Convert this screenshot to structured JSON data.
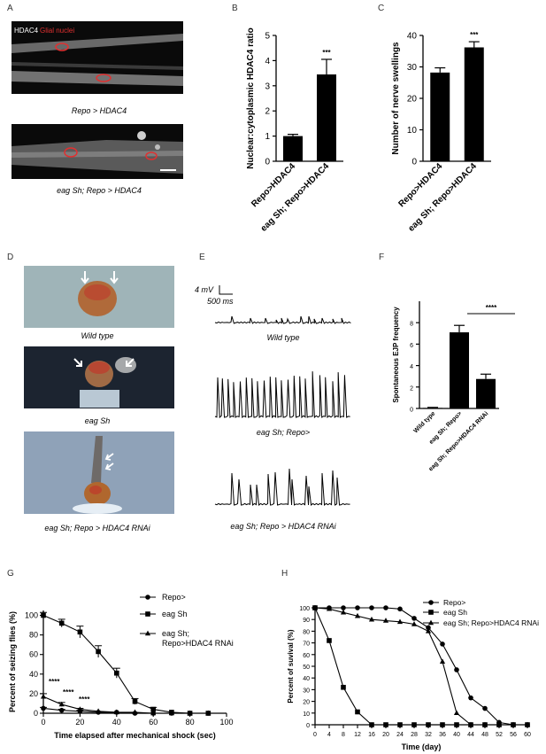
{
  "panel_letters": {
    "A": "A",
    "B": "B",
    "C": "C",
    "D": "D",
    "E": "E",
    "F": "F",
    "G": "G",
    "H": "H"
  },
  "panel_a": {
    "legend_hdac4": "HDAC4",
    "legend_glial": "Glial nuclei",
    "caption_top": "Repo > HDAC4",
    "caption_bottom": "eag Sh; Repo > HDAC4"
  },
  "panel_d": {
    "captions": [
      "Wild type",
      "eag Sh",
      "eag Sh; Repo > HDAC4 RNAi"
    ]
  },
  "panel_e": {
    "scale_mv": "4 mV",
    "scale_ms": "500 ms",
    "captions": [
      "Wild type",
      "eag Sh; Repo>",
      "eag Sh; Repo > HDAC4 RNAi"
    ]
  },
  "colors": {
    "bar": "#000000",
    "axis": "#000000",
    "scar": "#e03030"
  },
  "chart_data": [
    {
      "panel": "B",
      "type": "bar",
      "categories": [
        "Repo>HDAC4",
        "eag Sh; Repo>HDAC4"
      ],
      "values": [
        1.0,
        3.45
      ],
      "errors": [
        0.07,
        0.6
      ],
      "ylabel": "Nuclear:cytoplasmic HDAC4 ratio",
      "ylim": [
        0,
        5
      ],
      "yticks": [
        "0",
        "1",
        "2",
        "3",
        "4",
        "5"
      ],
      "significance": "***"
    },
    {
      "panel": "C",
      "type": "bar",
      "categories": [
        "Repo>HDAC4",
        "eag Sh; Repo>HDAC4"
      ],
      "values": [
        28.2,
        36.2
      ],
      "errors": [
        1.5,
        1.8
      ],
      "ylabel": "Number of nerve swellings",
      "ylim": [
        0,
        40
      ],
      "yticks": [
        "0",
        "10",
        "20",
        "30",
        "40"
      ],
      "significance": "***"
    },
    {
      "panel": "F",
      "type": "bar",
      "categories": [
        "Wild type",
        "eag Sh; Repo>",
        "eag Sh; Repo>HDAC4 RNAi"
      ],
      "values": [
        0.05,
        7.1,
        2.75
      ],
      "errors": [
        0.05,
        0.65,
        0.45
      ],
      "ylabel": "Spontaneous EJP frequency",
      "ylim": [
        0,
        10
      ],
      "yticks": [
        "0",
        "2",
        "4",
        "6",
        "8"
      ],
      "significance": "****"
    },
    {
      "panel": "G",
      "type": "line",
      "xlabel": "Time elapsed after mechanical shock (sec)",
      "ylabel": "Percent of seizing flies (%)",
      "xlim": [
        0,
        100
      ],
      "ylim": [
        0,
        105
      ],
      "xticks": [
        "0",
        "20",
        "40",
        "60",
        "80",
        "100"
      ],
      "yticks": [
        "0",
        "20",
        "40",
        "60",
        "80",
        "100"
      ],
      "legend": [
        "Repo>",
        "eag Sh",
        "eag Sh;",
        "Repo>HDAC4 RNAi"
      ],
      "annotations": [
        "****",
        "****",
        "****"
      ],
      "series": [
        {
          "name": "Repo>",
          "marker": "circle",
          "x": [
            0,
            10,
            20,
            30,
            40,
            50,
            60,
            70,
            80,
            90
          ],
          "y": [
            5,
            3,
            2,
            1,
            1,
            0,
            0,
            0,
            0,
            0
          ],
          "err": [
            1,
            1,
            1,
            0,
            0,
            0,
            0,
            0,
            0,
            0
          ]
        },
        {
          "name": "eag Sh",
          "marker": "square",
          "x": [
            0,
            10,
            20,
            30,
            40,
            50,
            60,
            70,
            80,
            90
          ],
          "y": [
            100,
            92,
            83,
            63,
            41,
            12,
            4,
            1,
            0,
            0
          ],
          "err": [
            3,
            4,
            6,
            6,
            5,
            3,
            2,
            0,
            0,
            0
          ]
        },
        {
          "name": "eag Sh; Repo>HDAC4 RNAi",
          "marker": "triangle",
          "x": [
            0,
            10,
            20,
            30,
            40,
            50,
            60,
            70,
            80,
            90
          ],
          "y": [
            17,
            9,
            4,
            2,
            1,
            1,
            0,
            0,
            0,
            0
          ],
          "err": [
            3,
            2,
            1,
            0,
            0,
            0,
            0,
            0,
            0,
            0
          ]
        }
      ]
    },
    {
      "panel": "H",
      "type": "line",
      "xlabel": "Time (day)",
      "ylabel": "Percent of suvival (%)",
      "xlim": [
        0,
        60
      ],
      "ylim": [
        0,
        100
      ],
      "xticks": [
        "0",
        "4",
        "8",
        "12",
        "16",
        "20",
        "24",
        "28",
        "32",
        "36",
        "40",
        "44",
        "48",
        "52",
        "56",
        "60"
      ],
      "yticks": [
        "0",
        "10",
        "20",
        "30",
        "40",
        "50",
        "60",
        "70",
        "80",
        "90",
        "100"
      ],
      "legend": [
        "Repo>",
        "eag Sh",
        "eag Sh; Repo>HDAC4 RNAi"
      ],
      "series": [
        {
          "name": "Repo>",
          "marker": "circle",
          "x": [
            0,
            4,
            8,
            12,
            16,
            20,
            24,
            28,
            32,
            36,
            40,
            44,
            48,
            52,
            56,
            60
          ],
          "y": [
            100,
            100,
            100,
            100,
            100,
            100,
            99,
            91,
            83,
            69,
            47,
            23,
            14,
            2,
            0,
            0
          ]
        },
        {
          "name": "eag Sh",
          "marker": "square",
          "x": [
            0,
            4,
            8,
            12,
            16,
            20,
            24,
            28,
            32,
            36,
            40,
            44,
            48,
            52,
            56,
            60
          ],
          "y": [
            100,
            72,
            32,
            11,
            0,
            0,
            0,
            0,
            0,
            0,
            0,
            0,
            0,
            0,
            0,
            0
          ]
        },
        {
          "name": "eag Sh; Repo>HDAC4 RNAi",
          "marker": "triangle",
          "x": [
            0,
            4,
            8,
            12,
            16,
            20,
            24,
            28,
            32,
            36,
            40,
            44,
            48,
            52,
            56,
            60
          ],
          "y": [
            100,
            99,
            96,
            93,
            90,
            89,
            88,
            86,
            80,
            54,
            10,
            0,
            0,
            0,
            0,
            0
          ]
        }
      ]
    }
  ]
}
